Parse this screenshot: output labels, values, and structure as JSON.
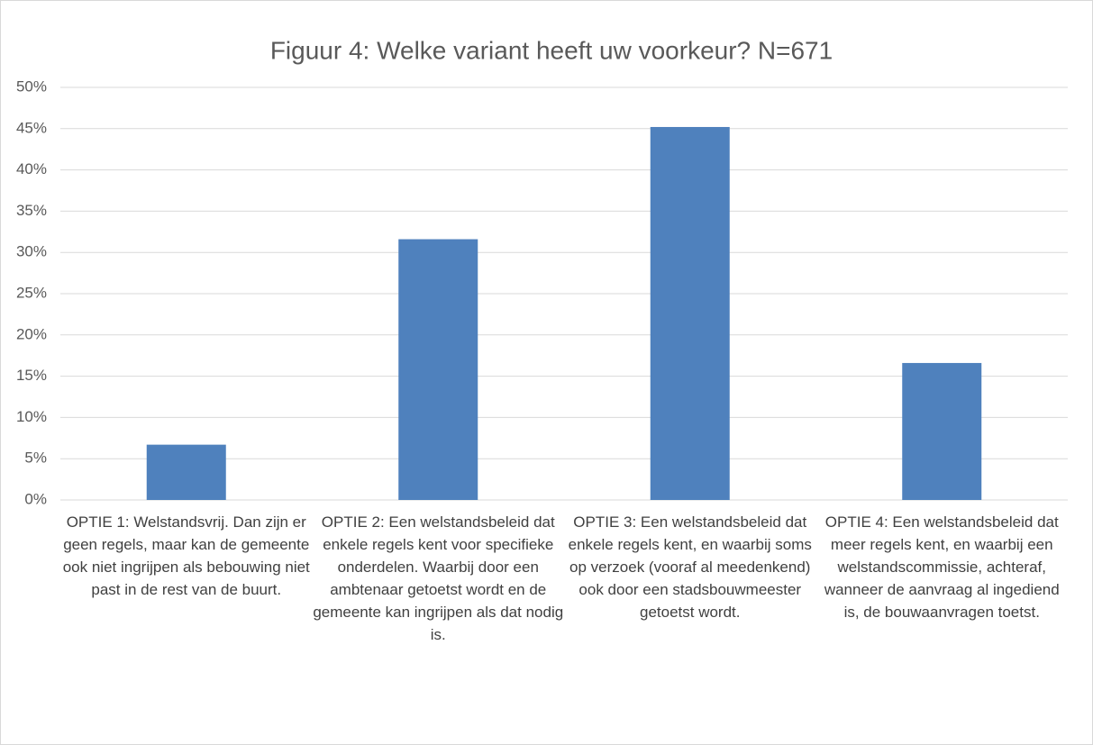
{
  "chart_data": {
    "type": "bar",
    "title": "Figuur 4: Welke variant heeft uw voorkeur? N=671",
    "categories": [
      "OPTIE 1: Welstandsvrij. Dan zijn er geen regels, maar kan de gemeente ook niet ingrijpen als bebouwing niet past in de rest van de buurt.",
      "OPTIE 2: Een welstandsbeleid dat enkele regels kent voor specifieke onderdelen. Waarbij door een ambtenaar getoetst wordt en de gemeente kan ingrijpen als dat nodig is.",
      "OPTIE 3: Een welstandsbeleid dat enkele regels kent, en waarbij soms op verzoek (vooraf al meedenkend) ook door een stadsbouwmeester getoetst wordt.",
      "OPTIE 4: Een welstandsbeleid dat meer regels kent, en waarbij een welstandscommissie, achteraf, wanneer de aanvraag al ingediend is, de bouwaanvragen toetst."
    ],
    "values": [
      6.7,
      31.6,
      45.2,
      16.6
    ],
    "color": "#4f81bd",
    "ylim": [
      0,
      50
    ],
    "yticks": [
      {
        "value": 0,
        "label": "0%"
      },
      {
        "value": 5,
        "label": "5%"
      },
      {
        "value": 10,
        "label": "10%"
      },
      {
        "value": 15,
        "label": "15%"
      },
      {
        "value": 20,
        "label": "20%"
      },
      {
        "value": 25,
        "label": "25%"
      },
      {
        "value": 30,
        "label": "30%"
      },
      {
        "value": 35,
        "label": "35%"
      },
      {
        "value": 40,
        "label": "40%"
      },
      {
        "value": 45,
        "label": "45%"
      },
      {
        "value": 50,
        "label": "50%"
      }
    ],
    "grid": true
  }
}
